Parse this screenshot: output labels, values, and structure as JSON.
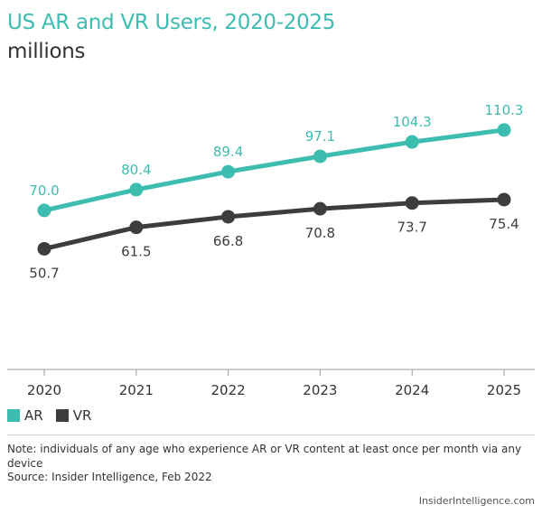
{
  "header": {
    "title": "US AR and VR Users, 2020-2025",
    "subtitle": "millions"
  },
  "chart_data": {
    "type": "line",
    "title": "US AR and VR Users, 2020-2025",
    "subtitle": "millions",
    "x": [
      "2020",
      "2021",
      "2022",
      "2023",
      "2024",
      "2025"
    ],
    "series": [
      {
        "name": "AR",
        "color": "#3dbcb0",
        "values": [
          70.0,
          80.4,
          89.4,
          97.1,
          104.3,
          110.3
        ],
        "labels": [
          "70.0",
          "80.4",
          "89.4",
          "97.1",
          "104.3",
          "110.3"
        ]
      },
      {
        "name": "VR",
        "color": "#3d3d3d",
        "values": [
          50.7,
          61.5,
          66.8,
          70.8,
          73.7,
          75.4
        ],
        "labels": [
          "50.7",
          "61.5",
          "66.8",
          "70.8",
          "73.7",
          "75.4"
        ]
      }
    ],
    "legend": "bottom-left",
    "grid": false
  },
  "legend": {
    "items": [
      {
        "label": "AR",
        "color": "#3dbcb0"
      },
      {
        "label": "VR",
        "color": "#3d3d3d"
      }
    ]
  },
  "footer": {
    "note": "Note: individuals of any age who experience AR or VR content at least once per month via any device",
    "source": "Source: Insider Intelligence, Feb 2022",
    "credit": "InsiderIntelligence.com"
  }
}
